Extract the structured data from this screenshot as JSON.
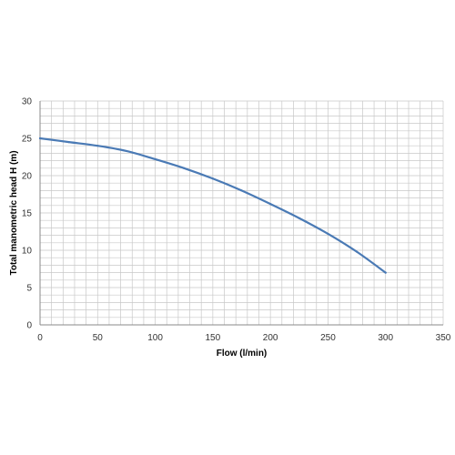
{
  "chart_data": {
    "type": "line",
    "xlabel": "Flow (l/min)",
    "ylabel": "Total manometric head H (m)",
    "xlim": [
      0,
      350
    ],
    "ylim": [
      0,
      30
    ],
    "x_ticks": [
      0,
      50,
      100,
      150,
      200,
      250,
      300,
      350
    ],
    "y_ticks": [
      0,
      5,
      10,
      15,
      20,
      25,
      30
    ],
    "grid": true,
    "legend": "none",
    "series": [
      {
        "x": [
          0,
          25,
          50,
          75,
          100,
          125,
          150,
          175,
          200,
          225,
          250,
          275,
          300
        ],
        "y": [
          25.0,
          24.5,
          24.0,
          23.3,
          22.2,
          21.0,
          19.6,
          18.0,
          16.2,
          14.3,
          12.2,
          9.8,
          7.0
        ]
      }
    ],
    "colors": {
      "line": "#4a7ab5",
      "grid": "#c8c8c8",
      "axis": "#888888"
    }
  }
}
